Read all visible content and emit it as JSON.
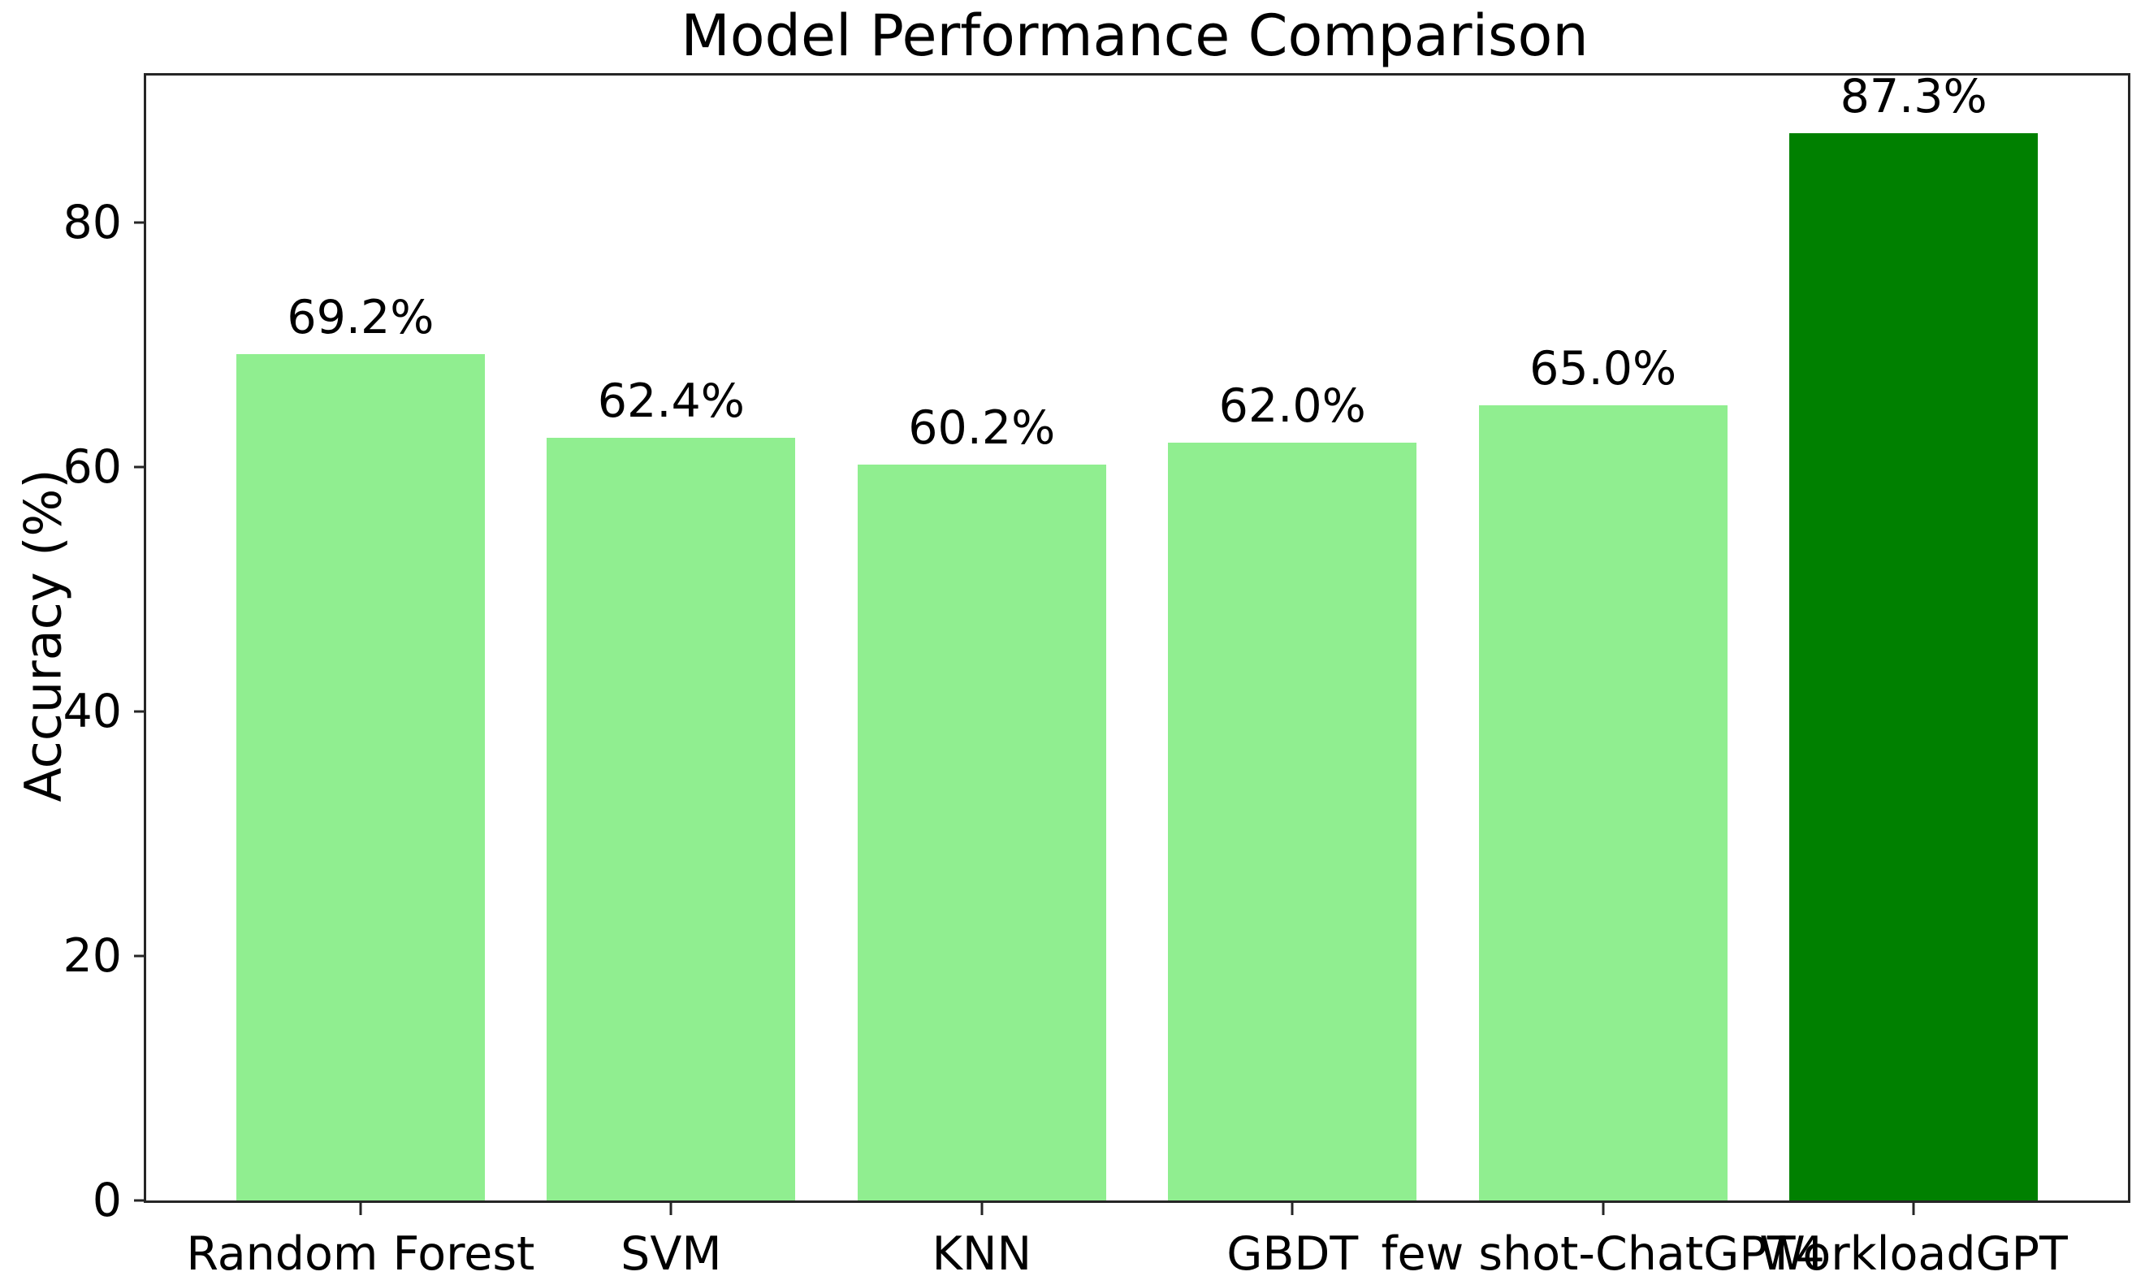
{
  "chart_data": {
    "type": "bar",
    "title": "Model Performance Comparison",
    "xlabel": "",
    "ylabel": "Accuracy (%)",
    "categories": [
      "Random Forest",
      "SVM",
      "KNN",
      "GBDT",
      "few shot-ChatGPT4",
      "WorkloadGPT"
    ],
    "values": [
      69.2,
      62.4,
      60.2,
      62.0,
      65.0,
      87.3
    ],
    "value_labels": [
      "69.2%",
      "62.4%",
      "60.2%",
      "62.0%",
      "65.0%",
      "87.3%"
    ],
    "bar_colors": [
      "#90EE90",
      "#90EE90",
      "#90EE90",
      "#90EE90",
      "#90EE90",
      "#008000"
    ],
    "yticks": [
      0,
      20,
      40,
      60,
      80
    ],
    "ytick_labels": [
      "0",
      "20",
      "40",
      "60",
      "80"
    ],
    "ylim": [
      0,
      92
    ],
    "bar_width_fraction": 0.8,
    "grid": false,
    "legend_position": "none",
    "colors": {
      "base_bar": "#90EE90",
      "highlight_bar": "#008000",
      "text": "#000000",
      "spine": "#262626",
      "background": "#ffffff"
    }
  }
}
